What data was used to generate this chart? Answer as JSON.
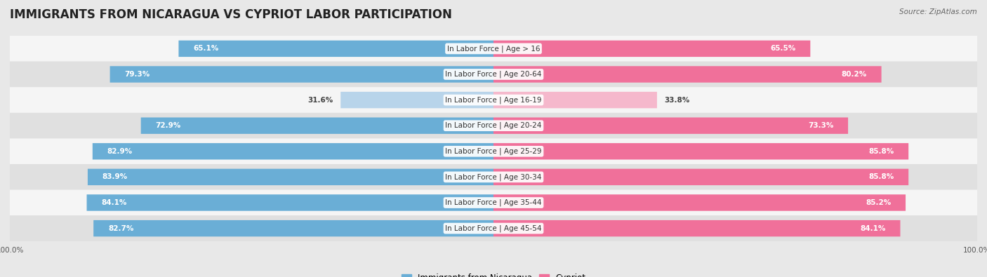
{
  "title": "IMMIGRANTS FROM NICARAGUA VS CYPRIOT LABOR PARTICIPATION",
  "source": "Source: ZipAtlas.com",
  "categories": [
    "In Labor Force | Age > 16",
    "In Labor Force | Age 20-64",
    "In Labor Force | Age 16-19",
    "In Labor Force | Age 20-24",
    "In Labor Force | Age 25-29",
    "In Labor Force | Age 30-34",
    "In Labor Force | Age 35-44",
    "In Labor Force | Age 45-54"
  ],
  "nicaragua_values": [
    65.1,
    79.3,
    31.6,
    72.9,
    82.9,
    83.9,
    84.1,
    82.7
  ],
  "cypriot_values": [
    65.5,
    80.2,
    33.8,
    73.3,
    85.8,
    85.8,
    85.2,
    84.1
  ],
  "nicaragua_color": "#6aaed6",
  "nicaragua_color_light": "#b8d4ea",
  "cypriot_color": "#f0709a",
  "cypriot_color_light": "#f5b8cc",
  "background_color": "#e8e8e8",
  "row_bg_even": "#f5f5f5",
  "row_bg_odd": "#e0e0e0",
  "max_value": 100.0,
  "legend_nicaragua": "Immigrants from Nicaragua",
  "legend_cypriot": "Cypriot",
  "bar_height": 0.62,
  "title_fontsize": 12,
  "label_fontsize": 7.5,
  "value_fontsize": 7.5,
  "axis_label_fontsize": 7.5,
  "legend_fontsize": 8.5
}
